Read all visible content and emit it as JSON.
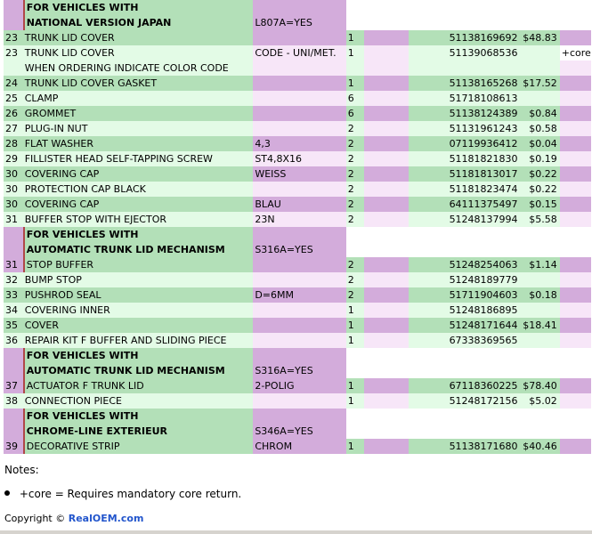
{
  "table": {
    "groups": [
      {
        "header": [
          "FOR VEHICLES WITH",
          "NATIONAL VERSION JAPAN"
        ],
        "condition": "L807A=YES",
        "rows": [
          {
            "no": "23",
            "desc": "TRUNK LID COVER",
            "supp": "",
            "qty": "1",
            "part": "51138169692",
            "price": "$48.83",
            "core": "",
            "shade": "A"
          },
          {
            "no": "23",
            "desc": "TRUNK LID COVER",
            "supp": "CODE - UNI/MET.",
            "qty": "1",
            "part": "51139068536",
            "price": "",
            "core": "+core",
            "shade": "B"
          },
          {
            "no": "",
            "desc": "WHEN ORDERING INDICATE COLOR CODE",
            "supp": "",
            "qty": "",
            "part": "",
            "price": "",
            "core": "",
            "shade": "B",
            "note": true
          },
          {
            "no": "24",
            "desc": "TRUNK LID COVER GASKET",
            "supp": "",
            "qty": "1",
            "part": "51138165268",
            "price": "$17.52",
            "core": "",
            "shade": "A"
          },
          {
            "no": "25",
            "desc": "CLAMP",
            "supp": "",
            "qty": "6",
            "part": "51718108613",
            "price": "",
            "core": "",
            "shade": "B"
          },
          {
            "no": "26",
            "desc": "GROMMET",
            "supp": "",
            "qty": "6",
            "part": "51138124389",
            "price": "$0.84",
            "core": "",
            "shade": "A"
          },
          {
            "no": "27",
            "desc": "PLUG-IN NUT",
            "supp": "",
            "qty": "2",
            "part": "51131961243",
            "price": "$0.58",
            "core": "",
            "shade": "B"
          },
          {
            "no": "28",
            "desc": "FLAT WASHER",
            "supp": "4,3",
            "qty": "2",
            "part": "07119936412",
            "price": "$0.04",
            "core": "",
            "shade": "A"
          },
          {
            "no": "29",
            "desc": "FILLISTER HEAD SELF-TAPPING SCREW",
            "supp": "ST4,8X16",
            "qty": "2",
            "part": "51181821830",
            "price": "$0.19",
            "core": "",
            "shade": "B"
          },
          {
            "no": "30",
            "desc": "COVERING CAP",
            "supp": "WEISS",
            "qty": "2",
            "part": "51181813017",
            "price": "$0.22",
            "core": "",
            "shade": "A"
          },
          {
            "no": "30",
            "desc": "PROTECTION CAP BLACK",
            "supp": "",
            "qty": "2",
            "part": "51181823474",
            "price": "$0.22",
            "core": "",
            "shade": "B"
          },
          {
            "no": "30",
            "desc": "COVERING CAP",
            "supp": "BLAU",
            "qty": "2",
            "part": "64111375497",
            "price": "$0.15",
            "core": "",
            "shade": "A"
          },
          {
            "no": "31",
            "desc": "BUFFER STOP WITH EJECTOR",
            "supp": "23N",
            "qty": "2",
            "part": "51248137994",
            "price": "$5.58",
            "core": "",
            "shade": "B"
          }
        ]
      },
      {
        "header": [
          "FOR VEHICLES WITH",
          "AUTOMATIC TRUNK LID MECHANISM"
        ],
        "condition": "S316A=YES",
        "rows": [
          {
            "no": "31",
            "desc": "STOP BUFFER",
            "supp": "",
            "qty": "2",
            "part": "51248254063",
            "price": "$1.14",
            "core": "",
            "shade": "A",
            "sub": true
          },
          {
            "no": "32",
            "desc": "BUMP STOP",
            "supp": "",
            "qty": "2",
            "part": "51248189779",
            "price": "",
            "core": "",
            "shade": "B"
          },
          {
            "no": "33",
            "desc": "PUSHROD SEAL",
            "supp": "D=6MM",
            "qty": "2",
            "part": "51711904603",
            "price": "$0.18",
            "core": "",
            "shade": "A"
          },
          {
            "no": "34",
            "desc": "COVERING INNER",
            "supp": "",
            "qty": "1",
            "part": "51248186895",
            "price": "",
            "core": "",
            "shade": "B"
          },
          {
            "no": "35",
            "desc": "COVER",
            "supp": "",
            "qty": "1",
            "part": "51248171644",
            "price": "$18.41",
            "core": "",
            "shade": "A"
          },
          {
            "no": "36",
            "desc": "REPAIR KIT F BUFFER AND SLIDING PIECE",
            "supp": "",
            "qty": "1",
            "part": "67338369565",
            "price": "",
            "core": "",
            "shade": "B"
          }
        ]
      },
      {
        "header": [
          "FOR VEHICLES WITH",
          "AUTOMATIC TRUNK LID MECHANISM"
        ],
        "condition": "S316A=YES",
        "rows": [
          {
            "no": "37",
            "desc": "ACTUATOR F TRUNK LID",
            "supp": "2-POLIG",
            "qty": "1",
            "part": "67118360225",
            "price": "$78.40",
            "core": "",
            "shade": "A",
            "sub": true
          },
          {
            "no": "38",
            "desc": "CONNECTION PIECE",
            "supp": "",
            "qty": "1",
            "part": "51248172156",
            "price": "$5.02",
            "core": "",
            "shade": "B"
          }
        ]
      },
      {
        "header": [
          "FOR VEHICLES WITH",
          "CHROME-LINE EXTERIEUR"
        ],
        "condition": "S346A=YES",
        "rows": [
          {
            "no": "39",
            "desc": "DECORATIVE STRIP",
            "supp": "CHROM",
            "qty": "1",
            "part": "51138171680",
            "price": "$40.46",
            "core": "",
            "shade": "A",
            "sub": true
          }
        ]
      }
    ]
  },
  "notes": {
    "title": "Notes:",
    "items": [
      "+core = Requires mandatory core return."
    ]
  },
  "footer": {
    "copyright": "Copyright © ",
    "link": "RealOEM.com"
  },
  "colors": {
    "green_dark": "#b3e0b8",
    "green_light": "#e3fbe6",
    "purple_dark": "#d3acdb",
    "purple_light": "#f7e6f8",
    "accent_line": "#b04848",
    "link": "#2255cc"
  }
}
